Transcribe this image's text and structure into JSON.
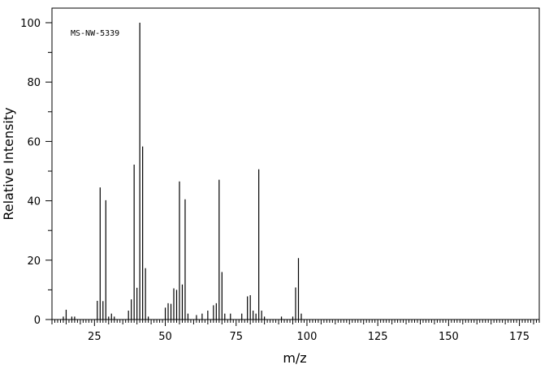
{
  "chart_data": {
    "type": "bar",
    "title": "",
    "annotation": "MS-NW-5339",
    "xlabel": "m/z",
    "ylabel": "Relative Intensity",
    "xlim": [
      10,
      182
    ],
    "ylim": [
      0,
      100
    ],
    "x_ticks": [
      25,
      50,
      75,
      100,
      125,
      150,
      175
    ],
    "y_ticks": [
      0,
      20,
      40,
      60,
      80,
      100
    ],
    "grid": false,
    "color": "#000000",
    "x": [
      14,
      15,
      17,
      18,
      26,
      27,
      28,
      29,
      30,
      31,
      32,
      37,
      38,
      39,
      40,
      41,
      42,
      43,
      44,
      50,
      51,
      52,
      53,
      54,
      55,
      56,
      57,
      58,
      61,
      63,
      65,
      67,
      68,
      69,
      70,
      71,
      73,
      77,
      79,
      80,
      81,
      82,
      83,
      84,
      85,
      91,
      95,
      96,
      97,
      98
    ],
    "values": [
      1,
      3.3,
      1,
      1,
      6.3,
      44.5,
      6.2,
      40.2,
      1,
      2,
      1,
      3,
      6.8,
      52.2,
      10.7,
      100,
      58.3,
      17.3,
      1,
      4,
      5.5,
      5.3,
      10.5,
      10,
      46.5,
      11.8,
      40.5,
      2,
      1.5,
      2,
      3,
      4.8,
      5.5,
      47.1,
      16,
      2,
      2,
      2,
      7.8,
      8.2,
      3,
      2,
      50.6,
      3,
      1,
      1,
      1,
      10.8,
      20.7,
      2
    ]
  }
}
